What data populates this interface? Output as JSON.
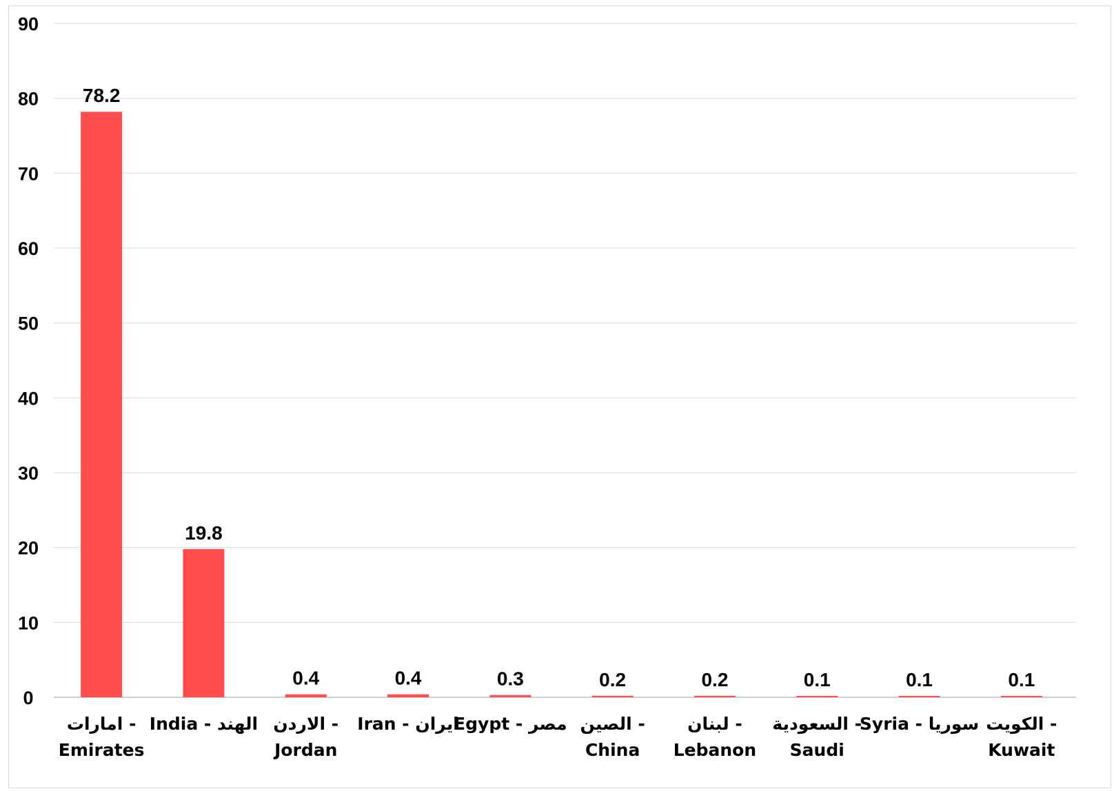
{
  "chart_data": {
    "type": "bar",
    "categories": [
      [
        "امارات -",
        "Emirates"
      ],
      [
        "India - الهند"
      ],
      [
        "الاردن -",
        "Jordan"
      ],
      [
        "Iran - ايران"
      ],
      [
        "Egypt - مصر"
      ],
      [
        "الصين -",
        "China"
      ],
      [
        "لبنان -",
        "Lebanon"
      ],
      [
        "السعودية -",
        "Saudi"
      ],
      [
        "Syria - سوريا"
      ],
      [
        "الكويت -",
        "Kuwait"
      ]
    ],
    "values": [
      78.2,
      19.8,
      0.4,
      0.4,
      0.3,
      0.2,
      0.2,
      0.1,
      0.1,
      0.1
    ],
    "data_labels": [
      "78.2",
      "19.8",
      "0.4",
      "0.4",
      "0.3",
      "0.2",
      "0.2",
      "0.1",
      "0.1",
      "0.1"
    ],
    "yticks": [
      0,
      10,
      20,
      30,
      40,
      50,
      60,
      70,
      80,
      90
    ],
    "ylim": [
      0,
      90
    ],
    "grid": true,
    "legend": "none",
    "bar_color": "#ff4d4d",
    "title": "",
    "xlabel": "",
    "ylabel": ""
  }
}
